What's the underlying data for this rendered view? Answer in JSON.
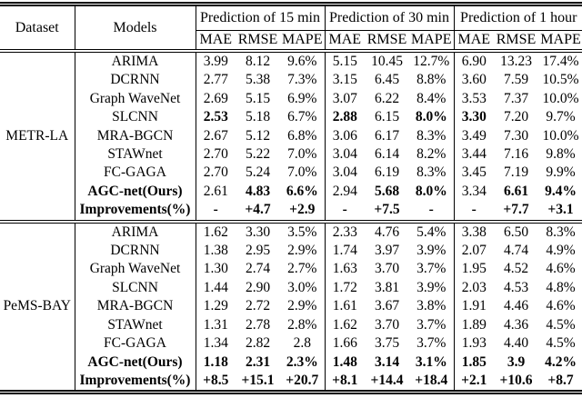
{
  "table": {
    "title": "Model comparison results table",
    "header": {
      "dataset_label": "Dataset",
      "models_label": "Models",
      "groups": [
        {
          "label": "Prediction of 15 min"
        },
        {
          "label": "Prediction of 30 min"
        },
        {
          "label": "Prediction of 1 hour"
        }
      ],
      "metrics": [
        "MAE",
        "RMSE",
        "MAPE"
      ]
    },
    "sections": [
      {
        "dataset": "METR-LA",
        "rows": [
          {
            "model": "ARIMA",
            "model_bold": false,
            "values": [
              "3.99",
              "8.12",
              "9.6%",
              "5.15",
              "10.45",
              "12.7%",
              "6.90",
              "13.23",
              "17.4%"
            ],
            "bold_cols": []
          },
          {
            "model": "DCRNN",
            "model_bold": false,
            "values": [
              "2.77",
              "5.38",
              "7.3%",
              "3.15",
              "6.45",
              "8.8%",
              "3.60",
              "7.59",
              "10.5%"
            ],
            "bold_cols": []
          },
          {
            "model": "Graph WaveNet",
            "model_bold": false,
            "values": [
              "2.69",
              "5.15",
              "6.9%",
              "3.07",
              "6.22",
              "8.4%",
              "3.53",
              "7.37",
              "10.0%"
            ],
            "bold_cols": []
          },
          {
            "model": "SLCNN",
            "model_bold": false,
            "values": [
              "2.53",
              "5.18",
              "6.7%",
              "2.88",
              "6.15",
              "8.0%",
              "3.30",
              "7.20",
              "9.7%"
            ],
            "bold_cols": [
              0,
              3,
              5,
              6
            ]
          },
          {
            "model": "MRA-BGCN",
            "model_bold": false,
            "values": [
              "2.67",
              "5.12",
              "6.8%",
              "3.06",
              "6.17",
              "8.3%",
              "3.49",
              "7.30",
              "10.0%"
            ],
            "bold_cols": []
          },
          {
            "model": "STAWnet",
            "model_bold": false,
            "values": [
              "2.70",
              "5.22",
              "7.0%",
              "3.04",
              "6.14",
              "8.2%",
              "3.44",
              "7.16",
              "9.8%"
            ],
            "bold_cols": []
          },
          {
            "model": "FC-GAGA",
            "model_bold": false,
            "values": [
              "2.70",
              "5.24",
              "7.0%",
              "3.04",
              "6.19",
              "8.3%",
              "3.45",
              "7.19",
              "9.9%"
            ],
            "bold_cols": []
          },
          {
            "model": "AGC-net(Ours)",
            "model_bold": true,
            "values": [
              "2.61",
              "4.83",
              "6.6%",
              "2.94",
              "5.68",
              "8.0%",
              "3.34",
              "6.61",
              "9.4%"
            ],
            "bold_cols": [
              1,
              2,
              4,
              5,
              7,
              8
            ]
          },
          {
            "model": "Improvements(%)",
            "model_bold": true,
            "values": [
              "-",
              "+4.7",
              "+2.9",
              "-",
              "+7.5",
              "-",
              "-",
              "+7.7",
              "+3.1"
            ],
            "bold_cols": [
              0,
              1,
              2,
              3,
              4,
              5,
              6,
              7,
              8
            ]
          }
        ]
      },
      {
        "dataset": "PeMS-BAY",
        "rows": [
          {
            "model": "ARIMA",
            "model_bold": false,
            "values": [
              "1.62",
              "3.30",
              "3.5%",
              "2.33",
              "4.76",
              "5.4%",
              "3.38",
              "6.50",
              "8.3%"
            ],
            "bold_cols": []
          },
          {
            "model": "DCRNN",
            "model_bold": false,
            "values": [
              "1.38",
              "2.95",
              "2.9%",
              "1.74",
              "3.97",
              "3.9%",
              "2.07",
              "4.74",
              "4.9%"
            ],
            "bold_cols": []
          },
          {
            "model": "Graph WaveNet",
            "model_bold": false,
            "values": [
              "1.30",
              "2.74",
              "2.7%",
              "1.63",
              "3.70",
              "3.7%",
              "1.95",
              "4.52",
              "4.6%"
            ],
            "bold_cols": []
          },
          {
            "model": "SLCNN",
            "model_bold": false,
            "values": [
              "1.44",
              "2.90",
              "3.0%",
              "1.72",
              "3.81",
              "3.9%",
              "2.03",
              "4.53",
              "4.8%"
            ],
            "bold_cols": []
          },
          {
            "model": "MRA-BGCN",
            "model_bold": false,
            "values": [
              "1.29",
              "2.72",
              "2.9%",
              "1.61",
              "3.67",
              "3.8%",
              "1.91",
              "4.46",
              "4.6%"
            ],
            "bold_cols": []
          },
          {
            "model": "STAWnet",
            "model_bold": false,
            "values": [
              "1.31",
              "2.78",
              "2.8%",
              "1.62",
              "3.70",
              "3.7%",
              "1.89",
              "4.36",
              "4.5%"
            ],
            "bold_cols": []
          },
          {
            "model": "FC-GAGA",
            "model_bold": false,
            "values": [
              "1.34",
              "2.82",
              "2.8",
              "1.66",
              "3.75",
              "3.7%",
              "1.93",
              "4.40",
              "4.5%"
            ],
            "bold_cols": []
          },
          {
            "model": "AGC-net(Ours)",
            "model_bold": true,
            "values": [
              "1.18",
              "2.31",
              "2.3%",
              "1.48",
              "3.14",
              "3.1%",
              "1.85",
              "3.9",
              "4.2%"
            ],
            "bold_cols": [
              0,
              1,
              2,
              3,
              4,
              5,
              6,
              7,
              8
            ]
          },
          {
            "model": "Improvements(%)",
            "model_bold": true,
            "values": [
              "+8.5",
              "+15.1",
              "+20.7",
              "+8.1",
              "+14.4",
              "+18.4",
              "+2.1",
              "+10.6",
              "+8.7"
            ],
            "bold_cols": [
              0,
              1,
              2,
              3,
              4,
              5,
              6,
              7,
              8
            ]
          }
        ]
      }
    ]
  }
}
